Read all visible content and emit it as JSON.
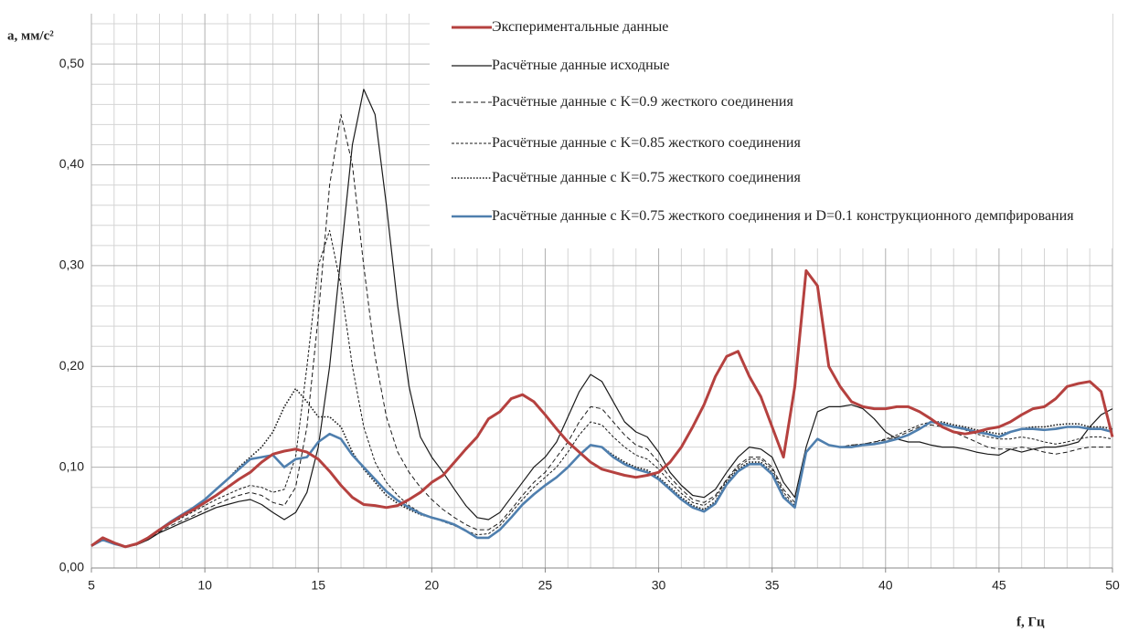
{
  "chart_data": {
    "type": "line",
    "ylabel": "a, мм/с²",
    "xlabel": "f, Гц",
    "xlim": [
      5,
      50
    ],
    "ylim": [
      0,
      0.55
    ],
    "xticks": [
      5,
      10,
      15,
      20,
      25,
      30,
      35,
      40,
      45,
      50
    ],
    "yticks": [
      {
        "value": 0,
        "label": "0,00"
      },
      {
        "value": 0.1,
        "label": "0,10"
      },
      {
        "value": 0.2,
        "label": "0,20"
      },
      {
        "value": 0.3,
        "label": "0,30"
      },
      {
        "value": 0.4,
        "label": "0,40"
      },
      {
        "value": 0.5,
        "label": "0,50"
      }
    ],
    "grid": true,
    "minor_grid": true,
    "legend": "top-right",
    "x": [
      5,
      5.5,
      6,
      6.5,
      7,
      7.5,
      8,
      8.5,
      9,
      9.5,
      10,
      10.5,
      11,
      11.5,
      12,
      12.5,
      13,
      13.5,
      14,
      14.5,
      15,
      15.5,
      16,
      16.5,
      17,
      17.5,
      18,
      18.5,
      19,
      19.5,
      20,
      20.5,
      21,
      21.5,
      22,
      22.5,
      23,
      23.5,
      24,
      24.5,
      25,
      25.5,
      26,
      26.5,
      27,
      27.5,
      28,
      28.5,
      29,
      29.5,
      30,
      30.5,
      31,
      31.5,
      32,
      32.5,
      33,
      33.5,
      34,
      34.5,
      35,
      35.5,
      36,
      36.5,
      37,
      37.5,
      38,
      38.5,
      39,
      39.5,
      40,
      40.5,
      41,
      41.5,
      42,
      42.5,
      43,
      43.5,
      44,
      44.5,
      45,
      45.5,
      46,
      46.5,
      47,
      47.5,
      48,
      48.5,
      49,
      49.5,
      50
    ],
    "series": [
      {
        "name": "Экспериментальные данные",
        "color": "#b5413f",
        "style": "solid",
        "width": 3,
        "values": [
          0.022,
          0.03,
          0.025,
          0.021,
          0.024,
          0.03,
          0.038,
          0.045,
          0.052,
          0.058,
          0.065,
          0.072,
          0.08,
          0.088,
          0.095,
          0.105,
          0.113,
          0.116,
          0.118,
          0.115,
          0.108,
          0.096,
          0.082,
          0.07,
          0.063,
          0.062,
          0.06,
          0.062,
          0.068,
          0.075,
          0.085,
          0.092,
          0.105,
          0.118,
          0.13,
          0.148,
          0.155,
          0.168,
          0.172,
          0.165,
          0.152,
          0.138,
          0.125,
          0.115,
          0.105,
          0.098,
          0.095,
          0.092,
          0.09,
          0.092,
          0.095,
          0.105,
          0.12,
          0.14,
          0.162,
          0.19,
          0.21,
          0.215,
          0.19,
          0.17,
          0.14,
          0.11,
          0.18,
          0.295,
          0.28,
          0.2,
          0.18,
          0.165,
          0.16,
          0.158,
          0.158,
          0.16,
          0.16,
          0.155,
          0.148,
          0.14,
          0.135,
          0.133,
          0.135,
          0.138,
          0.14,
          0.145,
          0.152,
          0.158,
          0.16,
          0.168,
          0.18,
          0.183,
          0.185,
          0.175,
          0.13
        ]
      },
      {
        "name": "Расчётные данные исходные",
        "color": "#1a1a1a",
        "style": "solid",
        "width": 1.2,
        "values": [
          0.022,
          0.028,
          0.024,
          0.021,
          0.023,
          0.028,
          0.035,
          0.04,
          0.045,
          0.05,
          0.055,
          0.06,
          0.063,
          0.066,
          0.068,
          0.063,
          0.055,
          0.048,
          0.055,
          0.075,
          0.12,
          0.2,
          0.31,
          0.42,
          0.475,
          0.45,
          0.36,
          0.26,
          0.18,
          0.13,
          0.11,
          0.095,
          0.078,
          0.062,
          0.05,
          0.048,
          0.055,
          0.07,
          0.085,
          0.1,
          0.11,
          0.125,
          0.15,
          0.175,
          0.192,
          0.185,
          0.165,
          0.145,
          0.135,
          0.13,
          0.115,
          0.095,
          0.082,
          0.072,
          0.07,
          0.078,
          0.095,
          0.11,
          0.12,
          0.118,
          0.11,
          0.085,
          0.07,
          0.12,
          0.155,
          0.16,
          0.16,
          0.162,
          0.158,
          0.148,
          0.135,
          0.128,
          0.125,
          0.125,
          0.122,
          0.12,
          0.12,
          0.118,
          0.115,
          0.113,
          0.112,
          0.118,
          0.115,
          0.118,
          0.12,
          0.12,
          0.122,
          0.125,
          0.14,
          0.152,
          0.158
        ]
      },
      {
        "name": "Расчётные данные с K=0.9 жесткого соединения",
        "color": "#1a1a1a",
        "style": "dashed",
        "width": 1,
        "values": [
          0.022,
          0.028,
          0.024,
          0.021,
          0.023,
          0.028,
          0.036,
          0.042,
          0.047,
          0.052,
          0.058,
          0.063,
          0.068,
          0.072,
          0.075,
          0.072,
          0.065,
          0.062,
          0.08,
          0.14,
          0.25,
          0.38,
          0.45,
          0.4,
          0.3,
          0.21,
          0.15,
          0.115,
          0.095,
          0.08,
          0.068,
          0.058,
          0.05,
          0.043,
          0.038,
          0.038,
          0.045,
          0.058,
          0.072,
          0.085,
          0.095,
          0.11,
          0.125,
          0.145,
          0.16,
          0.158,
          0.145,
          0.132,
          0.122,
          0.118,
          0.105,
          0.09,
          0.078,
          0.068,
          0.065,
          0.072,
          0.088,
          0.102,
          0.11,
          0.11,
          0.1,
          0.078,
          0.065,
          0.115,
          0.128,
          0.122,
          0.12,
          0.122,
          0.123,
          0.125,
          0.127,
          0.13,
          0.135,
          0.14,
          0.142,
          0.14,
          0.135,
          0.13,
          0.125,
          0.12,
          0.118,
          0.118,
          0.12,
          0.118,
          0.115,
          0.113,
          0.115,
          0.118,
          0.12,
          0.12,
          0.12
        ]
      },
      {
        "name": "Расчётные данные с K=0.85 жесткого соединения",
        "color": "#1a1a1a",
        "style": "fine-dashed",
        "width": 1,
        "values": [
          0.022,
          0.028,
          0.024,
          0.021,
          0.023,
          0.029,
          0.037,
          0.044,
          0.05,
          0.056,
          0.062,
          0.068,
          0.073,
          0.078,
          0.082,
          0.08,
          0.075,
          0.078,
          0.11,
          0.2,
          0.3,
          0.335,
          0.28,
          0.2,
          0.14,
          0.105,
          0.085,
          0.072,
          0.062,
          0.055,
          0.05,
          0.046,
          0.042,
          0.037,
          0.033,
          0.034,
          0.042,
          0.055,
          0.068,
          0.08,
          0.09,
          0.1,
          0.115,
          0.132,
          0.145,
          0.142,
          0.13,
          0.12,
          0.112,
          0.108,
          0.098,
          0.085,
          0.074,
          0.065,
          0.062,
          0.07,
          0.087,
          0.1,
          0.108,
          0.108,
          0.098,
          0.075,
          0.062,
          0.115,
          0.128,
          0.122,
          0.12,
          0.122,
          0.123,
          0.125,
          0.128,
          0.132,
          0.137,
          0.142,
          0.145,
          0.143,
          0.14,
          0.137,
          0.133,
          0.13,
          0.128,
          0.128,
          0.13,
          0.128,
          0.125,
          0.123,
          0.125,
          0.128,
          0.13,
          0.13,
          0.128
        ]
      },
      {
        "name": "Расчётные данные с K=0.75 жесткого соединения",
        "color": "#1a1a1a",
        "style": "dotted",
        "width": 1.6,
        "values": [
          0.022,
          0.028,
          0.024,
          0.021,
          0.024,
          0.03,
          0.038,
          0.046,
          0.053,
          0.06,
          0.068,
          0.078,
          0.088,
          0.1,
          0.11,
          0.12,
          0.135,
          0.16,
          0.178,
          0.165,
          0.15,
          0.15,
          0.14,
          0.115,
          0.098,
          0.085,
          0.072,
          0.064,
          0.058,
          0.053,
          0.05,
          0.047,
          0.043,
          0.037,
          0.03,
          0.03,
          0.038,
          0.05,
          0.063,
          0.073,
          0.082,
          0.09,
          0.1,
          0.112,
          0.122,
          0.12,
          0.112,
          0.105,
          0.1,
          0.097,
          0.09,
          0.08,
          0.07,
          0.062,
          0.058,
          0.066,
          0.085,
          0.098,
          0.105,
          0.105,
          0.095,
          0.072,
          0.06,
          0.115,
          0.128,
          0.122,
          0.12,
          0.12,
          0.122,
          0.123,
          0.125,
          0.128,
          0.132,
          0.138,
          0.145,
          0.145,
          0.142,
          0.14,
          0.137,
          0.135,
          0.133,
          0.135,
          0.138,
          0.14,
          0.14,
          0.142,
          0.143,
          0.143,
          0.14,
          0.14,
          0.138
        ]
      },
      {
        "name": "Расчётные данные с K=0.75 жесткого соединения и D=0.1 конструкционного демпфирования",
        "color": "#4f7fae",
        "style": "solid",
        "width": 2.6,
        "values": [
          0.022,
          0.028,
          0.024,
          0.021,
          0.024,
          0.03,
          0.038,
          0.046,
          0.053,
          0.06,
          0.068,
          0.078,
          0.088,
          0.098,
          0.108,
          0.11,
          0.112,
          0.1,
          0.108,
          0.11,
          0.125,
          0.133,
          0.128,
          0.112,
          0.1,
          0.088,
          0.076,
          0.067,
          0.06,
          0.054,
          0.05,
          0.047,
          0.043,
          0.037,
          0.03,
          0.03,
          0.038,
          0.05,
          0.063,
          0.073,
          0.082,
          0.09,
          0.1,
          0.112,
          0.122,
          0.12,
          0.11,
          0.103,
          0.098,
          0.095,
          0.088,
          0.078,
          0.068,
          0.06,
          0.056,
          0.064,
          0.083,
          0.096,
          0.103,
          0.103,
          0.093,
          0.07,
          0.06,
          0.115,
          0.128,
          0.122,
          0.12,
          0.12,
          0.122,
          0.123,
          0.125,
          0.128,
          0.132,
          0.138,
          0.145,
          0.143,
          0.14,
          0.138,
          0.135,
          0.133,
          0.13,
          0.135,
          0.138,
          0.138,
          0.137,
          0.138,
          0.14,
          0.14,
          0.138,
          0.138,
          0.135
        ]
      }
    ]
  }
}
